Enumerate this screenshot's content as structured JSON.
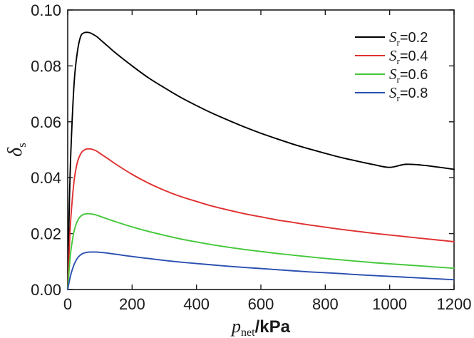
{
  "chart_data": {
    "type": "line",
    "xlabel": {
      "main": "p",
      "sub": "net",
      "rest": "/kPa"
    },
    "ylabel": {
      "main": "δ",
      "sub": "s"
    },
    "xlim": [
      0,
      1200
    ],
    "ylim": [
      0,
      0.1
    ],
    "xticks": [
      0,
      200,
      400,
      600,
      800,
      1000,
      1200
    ],
    "yticks": [
      0.0,
      0.02,
      0.04,
      0.06,
      0.08,
      0.1
    ],
    "xtick_labels": [
      "0",
      "200",
      "400",
      "600",
      "800",
      "1000",
      "1200"
    ],
    "ytick_labels": [
      "0.00",
      "0.02",
      "0.04",
      "0.06",
      "0.08",
      "0.10"
    ],
    "legend_position": "top-right",
    "series": [
      {
        "name": "Sr=0.2",
        "label_main": "S",
        "label_sub": "r",
        "label_value": "=0.2",
        "color": "#000000",
        "x": [
          0,
          5,
          10,
          20,
          30,
          40,
          50,
          60,
          70,
          80,
          90,
          100,
          125,
          150,
          200,
          250,
          300,
          350,
          400,
          450,
          500,
          550,
          600,
          650,
          700,
          750,
          800,
          850,
          900,
          950,
          1000,
          1050,
          1100,
          1150,
          1200
        ],
        "y": [
          0.0,
          0.03,
          0.05,
          0.074,
          0.085,
          0.0905,
          0.0918,
          0.092,
          0.0918,
          0.0912,
          0.0905,
          0.0895,
          0.087,
          0.0845,
          0.08,
          0.0758,
          0.0722,
          0.0688,
          0.0658,
          0.063,
          0.0605,
          0.0581,
          0.0559,
          0.0539,
          0.052,
          0.0503,
          0.0487,
          0.0472,
          0.0459,
          0.0447,
          0.0437,
          0.0448,
          0.0445,
          0.0438,
          0.043
        ]
      },
      {
        "name": "Sr=0.4",
        "label_main": "S",
        "label_sub": "r",
        "label_value": "=0.4",
        "color": "#e03030",
        "x": [
          0,
          5,
          10,
          20,
          30,
          40,
          50,
          60,
          70,
          80,
          90,
          100,
          125,
          150,
          200,
          250,
          300,
          350,
          400,
          450,
          500,
          550,
          600,
          650,
          700,
          750,
          800,
          850,
          900,
          950,
          1000,
          1050,
          1100,
          1150,
          1200
        ],
        "y": [
          0.0,
          0.015,
          0.026,
          0.039,
          0.0455,
          0.0485,
          0.0498,
          0.0503,
          0.0503,
          0.05,
          0.0495,
          0.0487,
          0.0468,
          0.0448,
          0.0412,
          0.0381,
          0.0355,
          0.0333,
          0.0315,
          0.0298,
          0.0284,
          0.0271,
          0.026,
          0.0249,
          0.024,
          0.0231,
          0.0223,
          0.0215,
          0.0208,
          0.0201,
          0.0195,
          0.0189,
          0.0183,
          0.0177,
          0.0171
        ]
      },
      {
        "name": "Sr=0.6",
        "label_main": "S",
        "label_sub": "r",
        "label_value": "=0.6",
        "color": "#44c83a",
        "x": [
          0,
          5,
          10,
          20,
          30,
          40,
          50,
          60,
          70,
          80,
          90,
          100,
          125,
          150,
          200,
          250,
          300,
          350,
          400,
          450,
          500,
          550,
          600,
          650,
          700,
          750,
          800,
          850,
          900,
          950,
          1000,
          1050,
          1100,
          1150,
          1200
        ],
        "y": [
          0.0,
          0.008,
          0.014,
          0.021,
          0.0245,
          0.0262,
          0.0269,
          0.0271,
          0.0271,
          0.0269,
          0.0266,
          0.0262,
          0.0252,
          0.0242,
          0.0224,
          0.0208,
          0.0194,
          0.0181,
          0.017,
          0.016,
          0.0151,
          0.0143,
          0.0136,
          0.0129,
          0.0123,
          0.0117,
          0.0111,
          0.0106,
          0.0101,
          0.0096,
          0.0092,
          0.0088,
          0.0084,
          0.008,
          0.0076
        ]
      },
      {
        "name": "Sr=0.8",
        "label_main": "S",
        "label_sub": "r",
        "label_value": "=0.8",
        "color": "#2a4fb0",
        "x": [
          0,
          5,
          10,
          20,
          30,
          40,
          50,
          60,
          70,
          80,
          90,
          100,
          125,
          150,
          200,
          250,
          300,
          350,
          400,
          450,
          500,
          550,
          600,
          650,
          700,
          750,
          800,
          850,
          900,
          950,
          1000,
          1050,
          1100,
          1150,
          1200
        ],
        "y": [
          0.0,
          0.003,
          0.0055,
          0.009,
          0.0112,
          0.0124,
          0.013,
          0.0133,
          0.0134,
          0.0134,
          0.0134,
          0.0133,
          0.013,
          0.0126,
          0.0118,
          0.0111,
          0.0104,
          0.0098,
          0.0093,
          0.0088,
          0.0083,
          0.0079,
          0.0075,
          0.0071,
          0.0067,
          0.0063,
          0.006,
          0.0057,
          0.0053,
          0.005,
          0.0047,
          0.0044,
          0.0041,
          0.0038,
          0.0035
        ]
      }
    ]
  }
}
